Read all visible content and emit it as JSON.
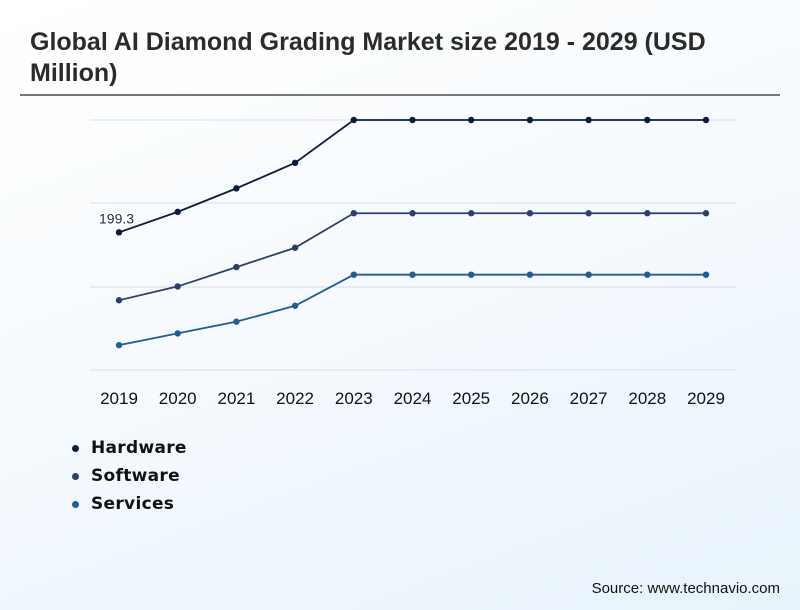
{
  "title": "Global AI Diamond Grading Market size 2019 - 2029 (USD Million)",
  "source": "Source: www.technavio.com",
  "colors": {
    "Hardware": "#0d1b3e",
    "Software": "#2e3f6e",
    "Services": "#1d5c9e"
  },
  "chart_data": {
    "type": "line",
    "title": "Global AI Diamond Grading Market size 2019 - 2029 (USD Million)",
    "xlabel": "",
    "ylabel": "",
    "categories": [
      "2019",
      "2020",
      "2021",
      "2022",
      "2023",
      "2024",
      "2025",
      "2026",
      "2027",
      "2028",
      "2029"
    ],
    "ylim": [
      0,
      600
    ],
    "grid": true,
    "legend_position": "bottom-left",
    "series": [
      {
        "name": "Hardware",
        "values": [
          199.3,
          229,
          263,
          300,
          362,
          362,
          362,
          362,
          362,
          362,
          362
        ]
      },
      {
        "name": "Software",
        "values": [
          101,
          121,
          149,
          177,
          227,
          227,
          227,
          227,
          227,
          227,
          227
        ]
      },
      {
        "name": "Services",
        "values": [
          36,
          53,
          70,
          93,
          138,
          138,
          138,
          138,
          138,
          138,
          138
        ]
      }
    ],
    "annotations": [
      {
        "series": "Hardware",
        "category": "2019",
        "text": "199.3"
      }
    ]
  }
}
